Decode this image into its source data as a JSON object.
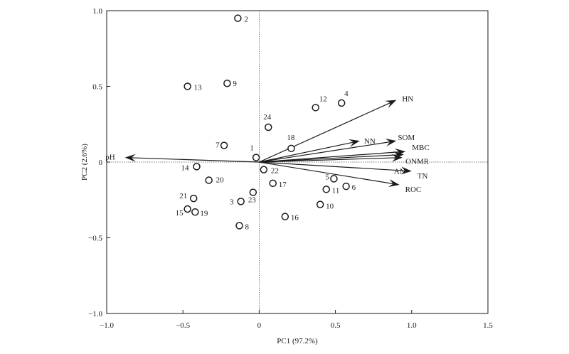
{
  "chart_data": {
    "type": "scatter",
    "subtype": "pca-biplot",
    "title": "",
    "xlabel": "PC1 (97.2%)",
    "ylabel": "PC2 (2.6%)",
    "xlim": [
      -1.0,
      1.5
    ],
    "ylim": [
      -1.0,
      1.0
    ],
    "xticks": [
      -1.0,
      -0.5,
      0,
      0.5,
      1.0,
      1.5
    ],
    "xtick_labels": [
      "−1.0",
      "−0.5",
      "0",
      "0.5",
      "1.0",
      "1.5"
    ],
    "yticks": [
      1.0,
      0.5,
      0,
      -0.5,
      -1.0
    ],
    "ytick_labels": [
      "1.0",
      "0.5",
      "0",
      "−0.5",
      "−1.0"
    ],
    "grid": false,
    "zero_lines": "dotted",
    "samples": [
      {
        "label": "1",
        "x": -0.02,
        "y": 0.03
      },
      {
        "label": "2",
        "x": -0.14,
        "y": 0.95
      },
      {
        "label": "3",
        "x": -0.12,
        "y": -0.26
      },
      {
        "label": "4",
        "x": 0.54,
        "y": 0.39
      },
      {
        "label": "5",
        "x": 0.49,
        "y": -0.11
      },
      {
        "label": "6",
        "x": 0.57,
        "y": -0.16
      },
      {
        "label": "7",
        "x": -0.23,
        "y": 0.11
      },
      {
        "label": "8",
        "x": -0.13,
        "y": -0.42
      },
      {
        "label": "9",
        "x": -0.21,
        "y": 0.52
      },
      {
        "label": "10",
        "x": 0.4,
        "y": -0.28
      },
      {
        "label": "11",
        "x": 0.44,
        "y": -0.18
      },
      {
        "label": "12",
        "x": 0.37,
        "y": 0.36
      },
      {
        "label": "13",
        "x": -0.47,
        "y": 0.5
      },
      {
        "label": "14",
        "x": -0.41,
        "y": -0.03
      },
      {
        "label": "15",
        "x": -0.47,
        "y": -0.31
      },
      {
        "label": "16",
        "x": 0.17,
        "y": -0.36
      },
      {
        "label": "17",
        "x": 0.09,
        "y": -0.14
      },
      {
        "label": "18",
        "x": 0.21,
        "y": 0.09
      },
      {
        "label": "19",
        "x": -0.42,
        "y": -0.33
      },
      {
        "label": "20",
        "x": -0.33,
        "y": -0.12
      },
      {
        "label": "21",
        "x": -0.43,
        "y": -0.24
      },
      {
        "label": "22",
        "x": 0.03,
        "y": -0.05
      },
      {
        "label": "23",
        "x": -0.04,
        "y": -0.2
      },
      {
        "label": "24",
        "x": 0.06,
        "y": 0.23
      }
    ],
    "loadings": [
      {
        "label": "HN",
        "x": 0.9,
        "y": 0.41
      },
      {
        "label": "NN",
        "x": 0.66,
        "y": 0.14
      },
      {
        "label": "SOM",
        "x": 0.9,
        "y": 0.14
      },
      {
        "label": "MBC",
        "x": 0.96,
        "y": 0.07
      },
      {
        "label": "ONMR",
        "x": 0.95,
        "y": 0.05
      },
      {
        "label": "AN",
        "x": 0.94,
        "y": 0.03
      },
      {
        "label": "TN",
        "x": 1.0,
        "y": -0.06
      },
      {
        "label": "ROC",
        "x": 0.92,
        "y": -0.15
      },
      {
        "label": "pH",
        "x": -0.88,
        "y": 0.03
      }
    ]
  }
}
